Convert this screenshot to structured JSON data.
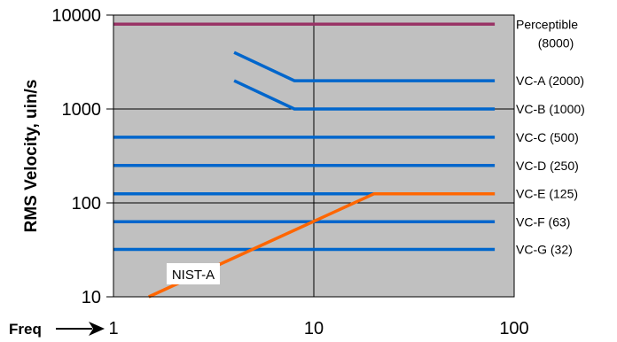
{
  "chart_data": {
    "type": "line",
    "title": "",
    "xlabel": "Freq",
    "ylabel": "RMS Velocity, uin/s",
    "x_scale": "log",
    "y_scale": "log",
    "xlim": [
      1,
      100
    ],
    "ylim": [
      10,
      10000
    ],
    "x_ticks": [
      "1",
      "10",
      "100"
    ],
    "y_ticks": [
      "10",
      "100",
      "1000",
      "10000"
    ],
    "grid": true,
    "legend": "none",
    "colors": {
      "plot_bg": "#c0c0c0",
      "perceptible": "#993366",
      "vc": "#0066cc",
      "nist": "#ff6600",
      "grid": "#000000"
    },
    "series": [
      {
        "name": "Perceptible (8000)",
        "label_lines": [
          "Perceptible",
          "(8000)"
        ],
        "color": "#993366",
        "x": [
          1,
          80
        ],
        "y": [
          8000,
          8000
        ]
      },
      {
        "name": "VC-A (2000)",
        "label_lines": [
          "VC-A (2000)"
        ],
        "color": "#0066cc",
        "x": [
          4,
          8,
          80
        ],
        "y": [
          4000,
          2000,
          2000
        ]
      },
      {
        "name": "VC-B (1000)",
        "label_lines": [
          "VC-B (1000)"
        ],
        "color": "#0066cc",
        "x": [
          4,
          8,
          80
        ],
        "y": [
          2000,
          1000,
          1000
        ]
      },
      {
        "name": "VC-C (500)",
        "label_lines": [
          "VC-C (500)"
        ],
        "color": "#0066cc",
        "x": [
          1,
          80
        ],
        "y": [
          500,
          500
        ]
      },
      {
        "name": "VC-D (250)",
        "label_lines": [
          "VC-D (250)"
        ],
        "color": "#0066cc",
        "x": [
          1,
          80
        ],
        "y": [
          250,
          250
        ]
      },
      {
        "name": "VC-E (125)",
        "label_lines": [
          "VC-E (125)"
        ],
        "color": "#0066cc",
        "x": [
          1,
          80
        ],
        "y": [
          125,
          125
        ]
      },
      {
        "name": "VC-F (63)",
        "label_lines": [
          "VC-F (63)"
        ],
        "color": "#0066cc",
        "x": [
          1,
          80
        ],
        "y": [
          63,
          63
        ]
      },
      {
        "name": "VC-G (32)",
        "label_lines": [
          "VC-G (32)"
        ],
        "color": "#0066cc",
        "x": [
          1,
          80
        ],
        "y": [
          32,
          32
        ]
      },
      {
        "name": "NIST-A",
        "label_lines": [
          "NIST-A"
        ],
        "color": "#ff6600",
        "x": [
          1.5,
          20,
          80
        ],
        "y": [
          10,
          125,
          125
        ]
      }
    ]
  }
}
